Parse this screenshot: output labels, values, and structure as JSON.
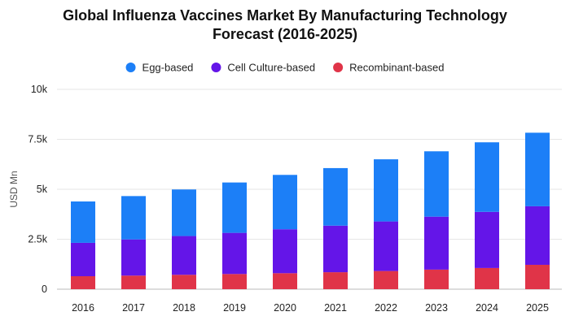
{
  "chart_data": {
    "type": "bar",
    "stacked": true,
    "title_lines": [
      "Global Influenza Vaccines Market By Manufacturing Technology",
      "Forecast (2016-2025)"
    ],
    "xlabel": "",
    "ylabel": "USD Mn",
    "categories": [
      "2016",
      "2017",
      "2018",
      "2019",
      "2020",
      "2021",
      "2022",
      "2023",
      "2024",
      "2025"
    ],
    "series": [
      {
        "name": "Recombinant-based",
        "color": "#e03448",
        "values": [
          650,
          680,
          720,
          760,
          800,
          850,
          910,
          980,
          1060,
          1220
        ]
      },
      {
        "name": "Cell Culture-based",
        "color": "#6415e8",
        "values": [
          1670,
          1810,
          1940,
          2060,
          2200,
          2330,
          2480,
          2650,
          2810,
          2930
        ]
      },
      {
        "name": "Egg-based",
        "color": "#1c7ff7",
        "values": [
          2070,
          2170,
          2330,
          2520,
          2720,
          2880,
          3110,
          3270,
          3480,
          3680
        ]
      }
    ],
    "legend_order": [
      "Egg-based",
      "Cell Culture-based",
      "Recombinant-based"
    ],
    "ylim": [
      0,
      10000
    ],
    "yticks": [
      0,
      2500,
      5000,
      7500,
      10000
    ],
    "ytick_labels": [
      "0",
      "2.5k",
      "5k",
      "7.5k",
      "10k"
    ],
    "legend_position": "top-center",
    "grid": true
  }
}
